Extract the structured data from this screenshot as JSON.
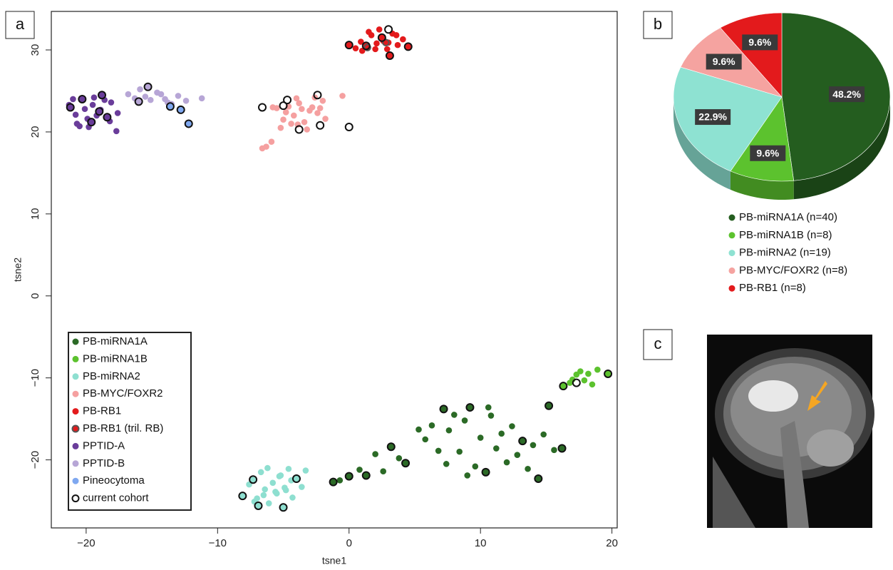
{
  "panels": [
    "a",
    "b",
    "c"
  ],
  "chart_data": [
    {
      "type": "scatter",
      "x_label": "tsne1",
      "y_label": "tsne2",
      "xlim": [
        -22.65,
        20.4
      ],
      "ylim": [
        -28.3,
        34.7
      ],
      "xticks": [
        {
          "value": -20,
          "label": "−20"
        },
        {
          "value": -10,
          "label": "−10"
        },
        0,
        10,
        20
      ],
      "yticks": [
        {
          "value": -20,
          "label": "−20"
        },
        {
          "value": -10,
          "label": "−10"
        },
        0,
        10,
        20,
        30
      ],
      "series": [
        {
          "name": "PB-miRNA1A",
          "color": "#2b6a26",
          "x": [
            -1.2,
            -0.7,
            0,
            0.8,
            1.3,
            2.0,
            2.6,
            3.2,
            3.8,
            4.3,
            5.3,
            5.8,
            6.3,
            6.8,
            7.2,
            7.6,
            8.0,
            8.4,
            8.8,
            9.2,
            9.6,
            10.0,
            10.4,
            10.8,
            11.2,
            11.6,
            12.0,
            12.4,
            12.8,
            13.2,
            13.6,
            14.0,
            14.4,
            14.8,
            15.2,
            15.6,
            16.2,
            9.0,
            10.6,
            7.4
          ],
          "values": [
            -22.7,
            -22.5,
            -22.0,
            -21.2,
            -21.9,
            -19.3,
            -21.4,
            -18.4,
            -19.8,
            -20.4,
            -16.3,
            -17.5,
            -15.8,
            -18.9,
            -13.8,
            -16.4,
            -14.5,
            -19.0,
            -15.2,
            -13.6,
            -20.8,
            -17.3,
            -21.5,
            -14.6,
            -18.6,
            -16.8,
            -20.3,
            -15.9,
            -19.4,
            -17.7,
            -21.1,
            -18.2,
            -22.3,
            -16.9,
            -13.4,
            -18.8,
            -18.6,
            -21.9,
            -13.6,
            -20.5
          ]
        },
        {
          "name": "PB-miRNA1B",
          "color": "#5cc22e",
          "x": [
            16.3,
            16.8,
            17.3,
            17.6,
            17.9,
            18.2,
            18.5,
            18.9,
            19.7,
            17.0
          ],
          "values": [
            -11.0,
            -10.6,
            -9.6,
            -9.2,
            -10.3,
            -9.5,
            -10.8,
            -9.0,
            -9.5,
            -10.2
          ]
        },
        {
          "name": "PB-miRNA2",
          "color": "#8edfd0",
          "x": [
            -8.1,
            -7.6,
            -7.3,
            -7.0,
            -6.7,
            -6.4,
            -6.1,
            -5.8,
            -5.5,
            -5.2,
            -4.9,
            -4.6,
            -4.3,
            -4.0,
            -3.6,
            -3.3,
            -6.9,
            -6.2,
            -5.6,
            -5.0,
            -4.4,
            -7.2,
            -6.5,
            -5.3,
            -4.8
          ],
          "values": [
            -24.4,
            -23.0,
            -22.4,
            -24.7,
            -21.5,
            -23.6,
            -25.3,
            -22.8,
            -24.1,
            -21.9,
            -23.4,
            -21.1,
            -24.6,
            -22.3,
            -23.3,
            -21.3,
            -25.6,
            -21.0,
            -23.9,
            -25.8,
            -22.5,
            -25.1,
            -24.3,
            -22.0,
            -23.7
          ]
        },
        {
          "name": "PB-MYC/FOXR2",
          "color": "#f5a0a0",
          "x": [
            -6.6,
            -6.3,
            -5.9,
            -5.5,
            -5.0,
            -4.6,
            -4.2,
            -3.8,
            -3.4,
            -3.0,
            -2.6,
            -2.2,
            -1.8,
            -5.2,
            -4.8,
            -4.4,
            -3.6,
            -3.2,
            -2.8,
            -2.4,
            -4.0,
            -0.5,
            -3.9,
            -2.0,
            -5.8
          ],
          "values": [
            18.0,
            18.2,
            18.8,
            22.9,
            21.5,
            23.1,
            22.0,
            23.5,
            21.2,
            22.6,
            24.2,
            22.9,
            21.6,
            20.5,
            22.4,
            21.0,
            22.8,
            20.3,
            23.0,
            22.3,
            24.1,
            24.4,
            20.9,
            23.8,
            23.0
          ]
        },
        {
          "name": "PB-RB1",
          "color": "#e31a1c",
          "x": [
            0,
            0.5,
            0.9,
            1.3,
            1.7,
            2.1,
            2.5,
            2.9,
            3.3,
            3.7,
            4.1,
            4.5,
            1.0,
            1.5,
            2.0,
            2.6,
            3.1,
            3.6,
            2.3,
            3.0
          ],
          "values": [
            30.6,
            30.2,
            31.0,
            30.5,
            31.8,
            30.8,
            31.5,
            30.1,
            32.0,
            30.6,
            31.3,
            30.4,
            29.9,
            32.2,
            30.1,
            31.1,
            29.3,
            31.8,
            32.5,
            30.9
          ]
        },
        {
          "name": "PB-RB1 (tril. RB)",
          "color": "#e31a1c",
          "stroke": "#555555",
          "x": [
            2.8,
            1.4
          ],
          "values": [
            30.9,
            30.3
          ]
        },
        {
          "name": "PPTID-A",
          "color": "#6a3d9a",
          "x": [
            -21.2,
            -20.8,
            -20.3,
            -19.9,
            -19.5,
            -19.2,
            -18.8,
            -18.4,
            -18.1,
            -17.7,
            -21.0,
            -20.5,
            -20.1,
            -19.6,
            -19.0,
            -18.6,
            -18.2,
            -19.4,
            -20.7,
            -21.3,
            -18.9,
            -19.8,
            -17.6
          ],
          "values": [
            23.0,
            22.1,
            24.0,
            21.6,
            23.3,
            22.0,
            24.5,
            21.8,
            23.6,
            20.1,
            24.0,
            20.7,
            22.8,
            21.2,
            22.5,
            23.9,
            21.3,
            24.2,
            21.0,
            23.3,
            22.7,
            20.6,
            22.3
          ]
        },
        {
          "name": "PPTID-B",
          "color": "#b7a6d6",
          "x": [
            -16.8,
            -16.3,
            -15.9,
            -15.5,
            -15.1,
            -14.6,
            -14.0,
            -13.5,
            -13.0,
            -12.4,
            -11.2,
            -16.0,
            -15.3,
            -14.3,
            -13.8
          ],
          "values": [
            24.6,
            24.1,
            25.2,
            24.3,
            23.9,
            24.8,
            24.0,
            23.4,
            24.4,
            23.8,
            24.1,
            23.7,
            25.5,
            24.6,
            23.6
          ]
        },
        {
          "name": "Pineocytoma",
          "color": "#7fa8f0",
          "x": [
            -13.6,
            -12.8,
            -12.2
          ],
          "values": [
            23.1,
            22.7,
            21.0
          ]
        },
        {
          "name": "current cohort",
          "color": "#111111",
          "hollow": true,
          "x": [
            -4.7,
            -5.0,
            -6.6,
            -2.4,
            -3.8,
            -2.2,
            0,
            0,
            1.3,
            2.5,
            3.1,
            4.5,
            3.0,
            -1.2,
            0,
            1.3,
            3.2,
            4.3,
            7.2,
            9.2,
            10.4,
            13.2,
            14.4,
            16.2,
            15.2,
            16.3,
            17.3,
            19.7,
            -8.1,
            -6.9,
            -5.0,
            -7.3,
            -4.0,
            -21.2,
            -19.0,
            -18.4,
            -18.8,
            -20.3,
            -19.6,
            -16.0,
            -15.3,
            -13.6,
            -12.2,
            -12.8
          ],
          "values": [
            23.9,
            23.2,
            23.0,
            24.5,
            20.3,
            20.8,
            20.6,
            30.6,
            30.5,
            31.5,
            29.3,
            30.4,
            32.5,
            -22.7,
            -22.0,
            -21.9,
            -18.4,
            -20.4,
            -13.8,
            -13.6,
            -21.5,
            -17.7,
            -22.3,
            -18.6,
            -13.4,
            -11.0,
            -10.6,
            -9.5,
            -24.4,
            -25.6,
            -25.8,
            -22.4,
            -22.3,
            23.0,
            22.5,
            21.8,
            24.5,
            24.0,
            21.2,
            23.7,
            25.5,
            23.1,
            21.0,
            22.7
          ]
        }
      ]
    },
    {
      "type": "pie",
      "categories": [
        "PB-miRNA1A (n=40)",
        "PB-miRNA1B (n=8)",
        "PB-miRNA2 (n=19)",
        "PB-MYC/FOXR2 (n=8)",
        "PB-RB1 (n=8)"
      ],
      "values": [
        48.2,
        9.6,
        22.9,
        9.6,
        9.6
      ],
      "value_labels": [
        "48.2%",
        "9.6%",
        "22.9%",
        "9.6%",
        "9.6%"
      ],
      "colors": [
        "#245d1f",
        "#5cc22e",
        "#8ee2d2",
        "#f5a3a0",
        "#e31a1c"
      ]
    }
  ]
}
